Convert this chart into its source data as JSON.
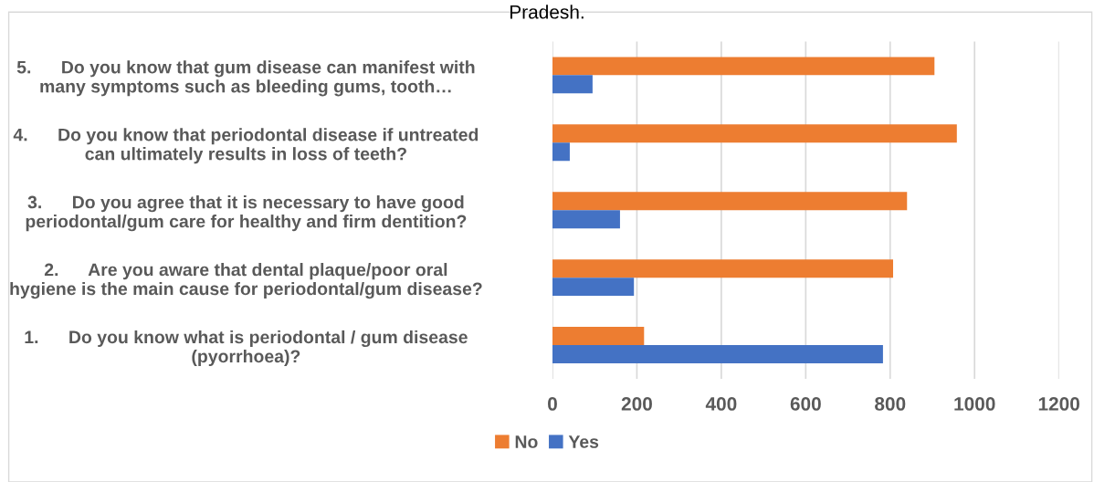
{
  "chart_data": {
    "type": "bar",
    "orientation": "horizontal",
    "title": "Pradesh.",
    "categories": [
      "5.      Do you know that gum disease can manifest with\nmany symptoms such as bleeding gums, tooth…",
      "4.      Do you know that periodontal disease if untreated\ncan ultimately results in loss of teeth?",
      "3.      Do you agree that it is necessary to have good\nperiodontal/gum care for healthy and firm dentition?",
      "2.      Are you aware that dental plaque/poor oral\nhygiene is the main cause for periodontal/gum disease?",
      "1.      Do you know what is periodontal / gum disease\n(pyorrhoea)?"
    ],
    "series": [
      {
        "name": "No",
        "color": "#ed7d31",
        "values": [
          905,
          958,
          840,
          807,
          217
        ]
      },
      {
        "name": "Yes",
        "color": "#4472c4",
        "values": [
          95,
          41,
          160,
          193,
          783
        ]
      }
    ],
    "xlim": [
      0,
      1200
    ],
    "xticks": [
      0,
      200,
      400,
      600,
      800,
      1000,
      1200
    ],
    "grid": "x",
    "legend": "bottom"
  }
}
